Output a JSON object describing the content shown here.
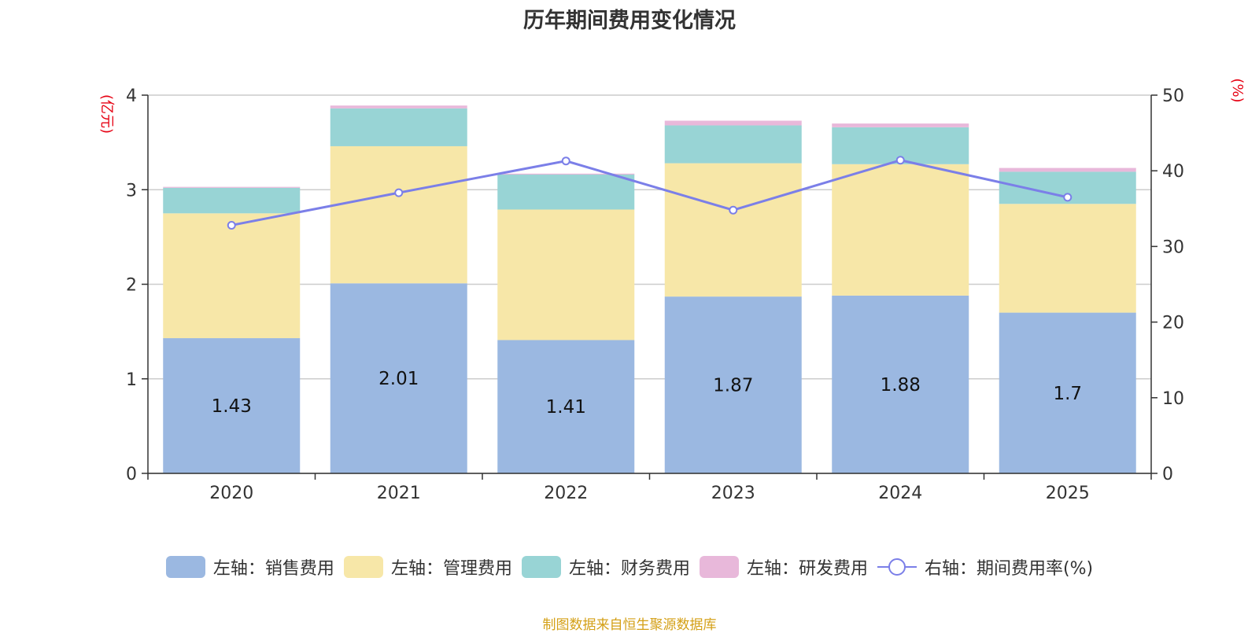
{
  "chart_data": {
    "type": "bar",
    "stacked": true,
    "title": "历年期间费用变化情况",
    "categories": [
      "2020",
      "2021",
      "2022",
      "2023",
      "2024",
      "2025"
    ],
    "y_left": {
      "label": "(亿元)",
      "ylim": [
        0,
        4
      ],
      "ticks": [
        "0",
        "1",
        "2",
        "3",
        "4"
      ]
    },
    "y_right": {
      "label": "(%)",
      "ylim": [
        0,
        50
      ],
      "ticks": [
        "0",
        "10",
        "20",
        "30",
        "40",
        "50"
      ]
    },
    "series": [
      {
        "name": "左轴：销售费用",
        "color": "#9bb8e1",
        "axis": "left",
        "values": [
          1.43,
          2.01,
          1.41,
          1.87,
          1.88,
          1.7
        ],
        "labels": [
          "1.43",
          "2.01",
          "1.41",
          "1.87",
          "1.88",
          "1.7"
        ]
      },
      {
        "name": "左轴：管理费用",
        "color": "#f7e7a8",
        "axis": "left",
        "values": [
          1.32,
          1.45,
          1.38,
          1.41,
          1.39,
          1.15
        ]
      },
      {
        "name": "左轴：财务费用",
        "color": "#98d4d5",
        "axis": "left",
        "values": [
          0.27,
          0.4,
          0.37,
          0.4,
          0.39,
          0.34
        ]
      },
      {
        "name": "左轴：研发费用",
        "color": "#e8b8da",
        "axis": "left",
        "values": [
          0.01,
          0.03,
          0.01,
          0.05,
          0.04,
          0.04
        ]
      },
      {
        "name": "右轴：期间费用率(%)",
        "type": "line",
        "color": "#7b7fe8",
        "axis": "right",
        "values": [
          32.8,
          37.1,
          41.3,
          34.8,
          41.4,
          36.5
        ]
      }
    ],
    "legend_position": "bottom",
    "grid": true
  },
  "source_note": "制图数据来自恒生聚源数据库"
}
